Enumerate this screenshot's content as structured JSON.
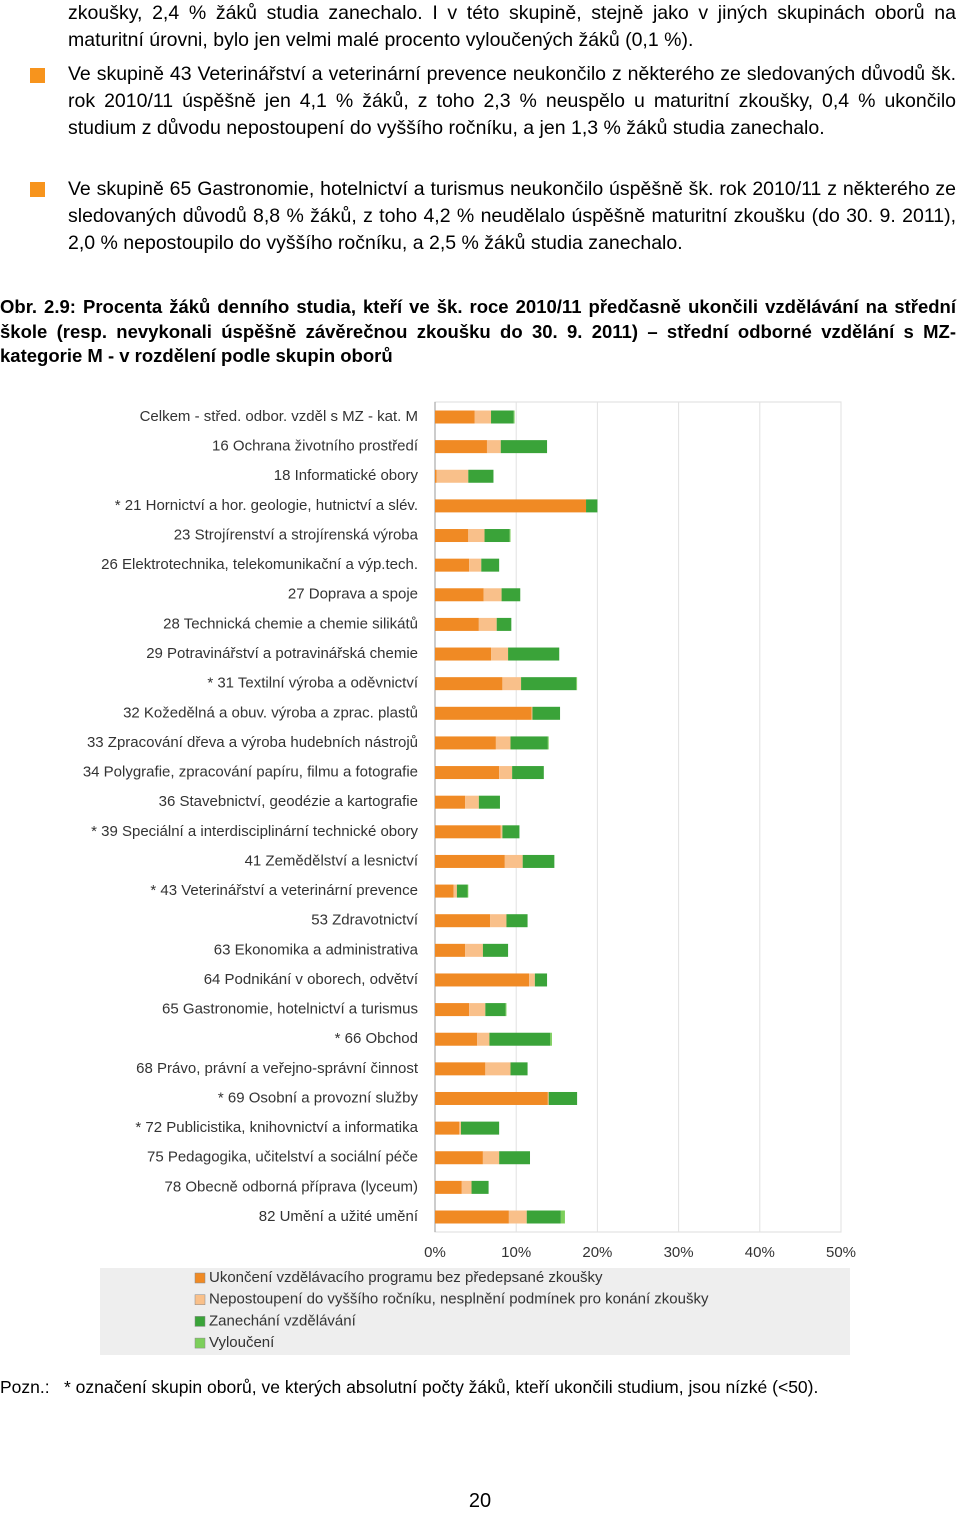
{
  "paragraphs": [
    "zkoušky, 2,4 % žáků studia zanechalo. I v této skupině, stejně jako v jiných skupinách oborů na maturitní úrovni, bylo jen velmi malé procento vyloučených žáků (0,1 %)."
  ],
  "bullets": [
    "Ve skupině 43 Veterinářství a veterinární prevence neukončilo z některého ze sledovaných důvodů šk. rok 2010/11 úspěšně jen 4,1 % žáků, z toho 2,3 % neuspělo u maturitní zkoušky, 0,4 % ukončilo studium z důvodu nepostoupení do vyššího ročníku, a jen 1,3 % žáků studia zanechalo.",
    "Ve skupině 65 Gastronomie, hotelnictví a turismus neukončilo úspěšně šk. rok 2010/11 z některého ze sledovaných důvodů 8,8 % žáků, z toho 4,2 % neudělalo úspěšně maturitní zkoušku (do 30. 9. 2011), 2,0 % nepostoupilo do vyššího ročníku, a 2,5 % žáků studia zanechalo."
  ],
  "caption": "Obr. 2.9: Procenta žáků denního studia, kteří ve šk. roce 2010/11 předčasně ukončili vzdělávání na střední škole (resp. nevykonali úspěšně závěrečnou zkoušku do 30. 9. 2011) – střední odborné vzdělání s MZ-kategorie M - v rozdělení podle skupin oborů",
  "chart_data": {
    "type": "stacked-barh",
    "categories": [
      "Celkem - střed. odbor. vzděl s MZ - kat. M",
      "16 Ochrana životního prostředí",
      "18 Informatické obory",
      "* 21 Hornictví a hor. geologie, hutnictví a slév.",
      "23 Strojírenství a strojírenská výroba",
      "26 Elektrotechnika, telekomunikační a výp.tech.",
      "27 Doprava a spoje",
      "28 Technická chemie a chemie silikátů",
      "29 Potravinářství a potravinářská chemie",
      "* 31 Textilní výroba a oděvnictví",
      "32 Kožedělná a obuv. výroba a zprac. plastů",
      "33 Zpracování dřeva a výroba hudebních nástrojů",
      "34 Polygrafie, zpracování papíru, filmu a fotografie",
      "36 Stavebnictví, geodézie a kartografie",
      "* 39 Speciální a interdisciplinární technické obory",
      "41 Zemědělství a lesnictví",
      "* 43 Veterinářství a veterinární prevence",
      "53 Zdravotnictví",
      "63 Ekonomika a administrativa",
      "64 Podnikání v oborech, odvětví",
      "65 Gastronomie, hotelnictví a turismus",
      "* 66 Obchod",
      "68 Právo, právní a veřejno-správní činnost",
      "* 69 Osobní a provozní služby",
      "* 72 Publicistika, knihovnictví a informatika",
      "75 Pedagogika, učitelství a sociální péče",
      "78 Obecně odborná příprava (lyceum)",
      "82 Umění a užité umění"
    ],
    "series": [
      {
        "name": "Ukončení vzdělávacího programu bez předepsané zkoušky",
        "color": "#f08a24",
        "values": [
          4.9,
          6.4,
          0.2,
          18.6,
          4.1,
          4.2,
          6.0,
          5.4,
          6.9,
          8.3,
          11.9,
          7.5,
          7.9,
          3.7,
          8.1,
          8.6,
          2.3,
          6.8,
          3.7,
          11.6,
          4.2,
          5.2,
          6.2,
          13.9,
          3.0,
          5.9,
          3.3,
          9.1
        ]
      },
      {
        "name": "Nepostoupení do vyššího ročníku, nesplnění podmínek pro konání zkoušky",
        "color": "#f9c08a",
        "values": [
          2.0,
          1.7,
          3.9,
          0,
          2.0,
          1.5,
          2.2,
          2.2,
          2.1,
          2.3,
          0.1,
          1.8,
          1.6,
          1.7,
          0.2,
          2.2,
          0.4,
          2.0,
          2.2,
          0.7,
          2.0,
          1.5,
          3.1,
          0.1,
          0.2,
          2.0,
          1.2,
          2.2
        ]
      },
      {
        "name": "Zanechání vzdělávání",
        "color": "#3aa339",
        "values": [
          2.8,
          5.7,
          3.1,
          1.4,
          3.1,
          2.2,
          2.3,
          1.8,
          6.3,
          6.8,
          3.4,
          4.6,
          3.9,
          2.6,
          2.1,
          3.9,
          1.3,
          2.6,
          3.1,
          1.5,
          2.5,
          7.5,
          2.1,
          3.5,
          4.7,
          3.8,
          2.1,
          4.2
        ]
      },
      {
        "name": "Vyloučení",
        "color": "#7ccf5a",
        "values": [
          0.1,
          0,
          0,
          0,
          0.1,
          0,
          0,
          0,
          0,
          0.1,
          0,
          0.1,
          0,
          0,
          0,
          0,
          0.1,
          0,
          0,
          0,
          0.1,
          0.2,
          0,
          0,
          0,
          0,
          0,
          0.5
        ]
      }
    ],
    "xlim": [
      0,
      50
    ],
    "xticks": [
      {
        "value": 0,
        "label": "0%"
      },
      {
        "value": 10,
        "label": "10%"
      },
      {
        "value": 20,
        "label": "20%"
      },
      {
        "value": 30,
        "label": "30%"
      },
      {
        "value": 40,
        "label": "40%"
      },
      {
        "value": 50,
        "label": "50%"
      }
    ],
    "grid": true
  },
  "note": {
    "label": "Pozn.:",
    "text": "* označení skupin oborů, ve kterých absolutní počty žáků, kteří ukončili studium, jsou nízké (<50)."
  },
  "page_number": "20"
}
